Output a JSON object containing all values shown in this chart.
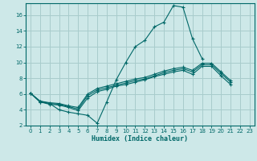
{
  "xlabel": "Humidex (Indice chaleur)",
  "bg_color": "#cde8e8",
  "line_color": "#006868",
  "grid_color": "#a8cccc",
  "xlim": [
    -0.5,
    23.5
  ],
  "ylim": [
    2,
    17.5
  ],
  "xticks": [
    0,
    1,
    2,
    3,
    4,
    5,
    6,
    7,
    8,
    9,
    10,
    11,
    12,
    13,
    14,
    15,
    16,
    17,
    18,
    19,
    20,
    21,
    22,
    23
  ],
  "yticks": [
    2,
    4,
    6,
    8,
    10,
    12,
    14,
    16
  ],
  "line1_x": [
    0,
    1,
    2,
    3,
    4,
    5,
    6,
    7,
    8,
    9,
    10,
    11,
    12,
    13,
    14,
    15,
    16,
    17,
    18,
    19,
    20,
    21,
    22,
    23
  ],
  "line1_y": [
    6.1,
    5.0,
    4.8,
    4.0,
    3.7,
    3.5,
    3.3,
    2.3,
    5.0,
    7.8,
    10.0,
    12.0,
    12.8,
    14.5,
    15.1,
    17.2,
    17.0,
    13.0,
    10.5,
    null,
    null,
    null,
    null,
    null
  ],
  "line2_x": [
    0,
    1,
    2,
    3,
    4,
    5,
    6,
    7,
    8,
    9,
    10,
    11,
    12,
    13,
    14,
    15,
    16,
    17,
    18,
    19,
    20,
    21,
    22,
    23
  ],
  "line2_y": [
    6.1,
    5.0,
    4.7,
    4.6,
    4.3,
    3.9,
    5.5,
    6.3,
    6.6,
    7.0,
    7.2,
    7.5,
    7.8,
    8.2,
    8.5,
    8.8,
    9.0,
    8.5,
    9.5,
    9.5,
    8.3,
    7.2,
    null,
    null
  ],
  "line3_x": [
    0,
    1,
    2,
    3,
    4,
    5,
    6,
    7,
    8,
    9,
    10,
    11,
    12,
    13,
    14,
    15,
    16,
    17,
    18,
    19,
    20,
    21,
    22,
    23
  ],
  "line3_y": [
    6.1,
    5.1,
    4.8,
    4.7,
    4.4,
    4.1,
    5.8,
    6.5,
    6.8,
    7.1,
    7.4,
    7.7,
    7.9,
    8.3,
    8.7,
    9.0,
    9.2,
    8.8,
    9.7,
    9.7,
    8.6,
    7.5,
    null,
    null
  ],
  "line4_x": [
    0,
    1,
    2,
    3,
    4,
    5,
    6,
    7,
    8,
    9,
    10,
    11,
    12,
    13,
    14,
    15,
    16,
    17,
    18,
    19,
    20,
    21,
    22,
    23
  ],
  "line4_y": [
    6.1,
    5.1,
    4.9,
    4.8,
    4.5,
    4.3,
    6.0,
    6.7,
    7.0,
    7.3,
    7.6,
    7.9,
    8.1,
    8.5,
    8.9,
    9.2,
    9.4,
    9.0,
    9.9,
    9.9,
    8.8,
    7.7,
    null,
    null
  ]
}
